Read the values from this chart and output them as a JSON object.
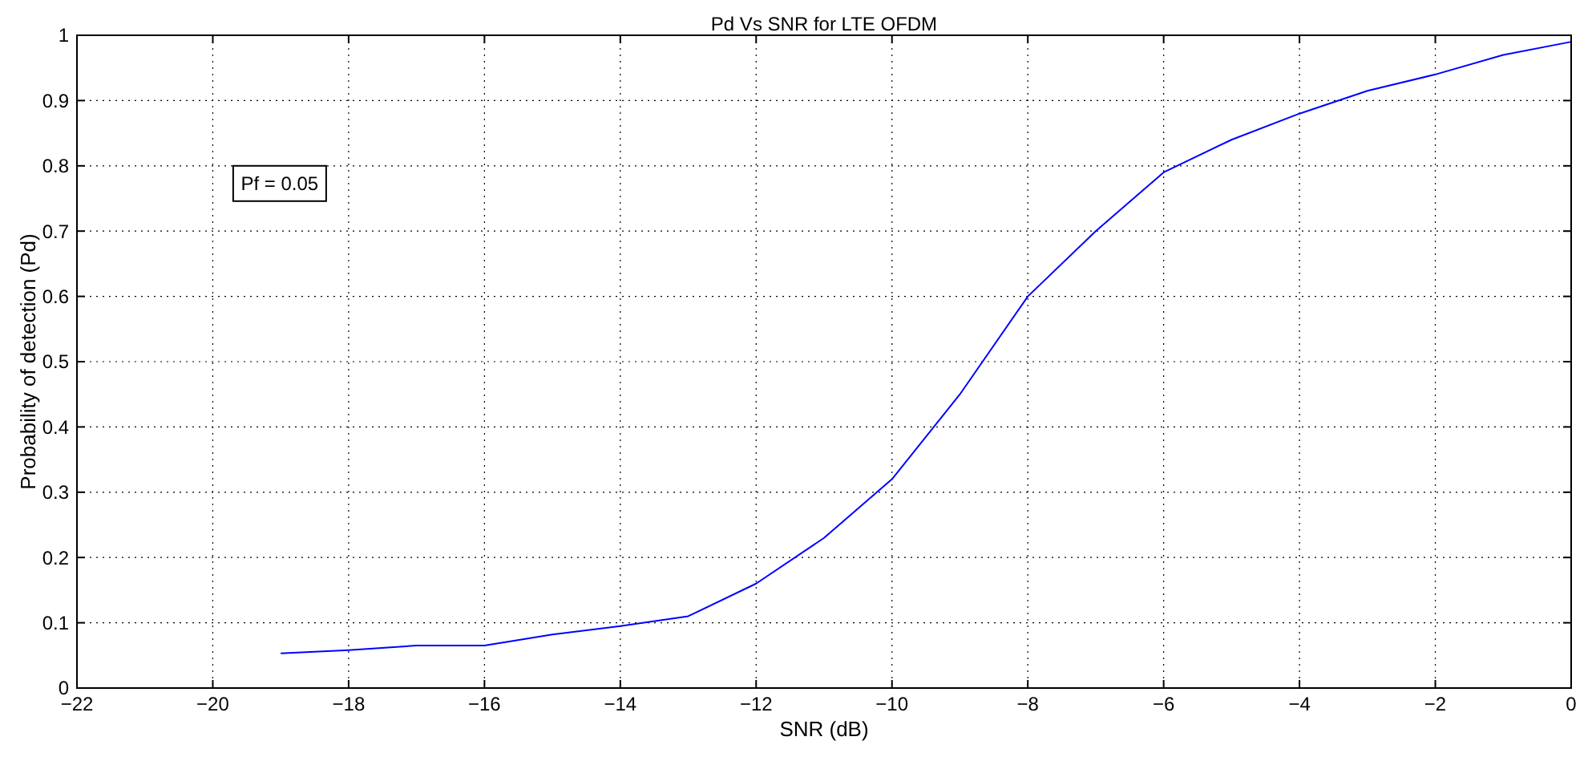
{
  "chart_data": {
    "type": "line",
    "title": "Pd Vs SNR for LTE OFDM",
    "xlabel": "SNR (dB)",
    "ylabel": "Probability of detection (Pd)",
    "x": [
      -19,
      -18,
      -17,
      -16,
      -15,
      -14,
      -13,
      -12,
      -11,
      -10,
      -9,
      -8,
      -7,
      -6,
      -5,
      -4,
      -3,
      -2,
      -1,
      0
    ],
    "series": [
      {
        "color": "#0000ff",
        "values": [
          0.053,
          0.058,
          0.065,
          0.065,
          0.082,
          0.095,
          0.11,
          0.16,
          0.23,
          0.32,
          0.45,
          0.6,
          0.7,
          0.79,
          0.84,
          0.88,
          0.915,
          0.94,
          0.97,
          0.99
        ]
      }
    ],
    "xlim": [
      -22,
      0
    ],
    "xticks": [
      -22,
      -20,
      -18,
      -16,
      -14,
      -12,
      -10,
      -8,
      -6,
      -4,
      -2,
      0
    ],
    "ylim": [
      0,
      1
    ],
    "yticks": [
      0,
      0.1,
      0.2,
      0.3,
      0.4,
      0.5,
      0.6,
      0.7,
      0.8,
      0.9,
      1
    ],
    "grid": true,
    "line_style": "solid",
    "marker": "none",
    "annotations": [
      "Pf = 0.05"
    ]
  }
}
